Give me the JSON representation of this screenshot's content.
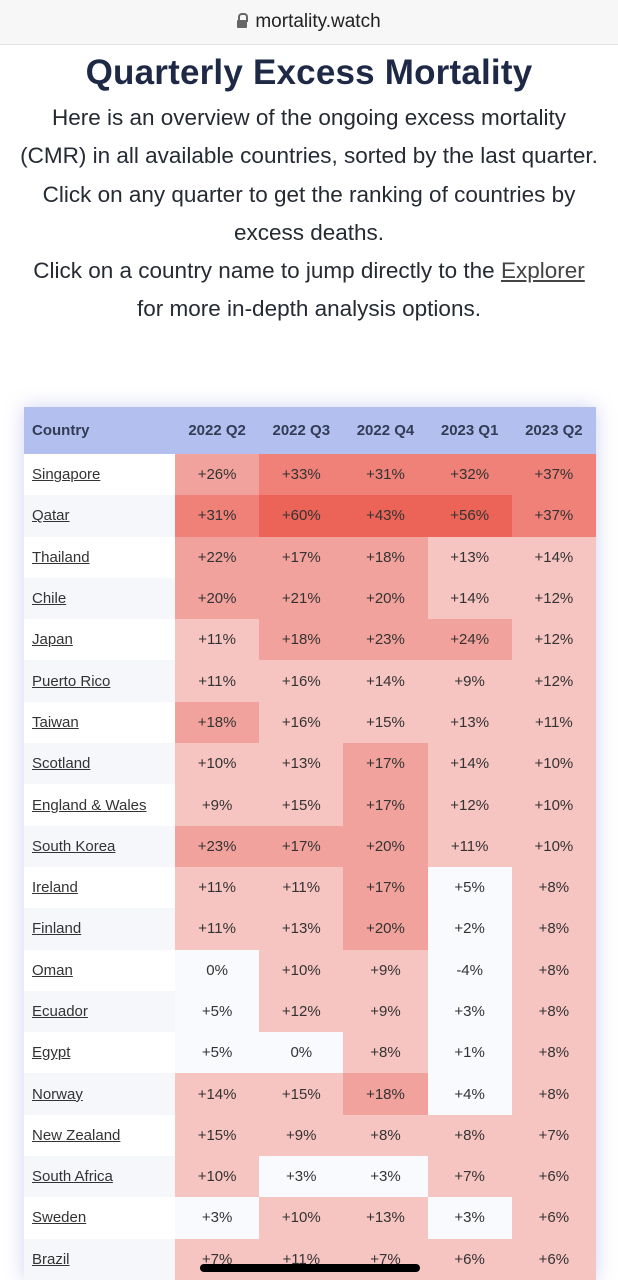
{
  "browser": {
    "url": "mortality.watch",
    "icon": "lock-icon"
  },
  "page": {
    "title": "Quarterly Excess Mortality",
    "intro_1": "Here is an overview of the ongoing excess mortality (CMR) in all available countries, sorted by the last quarter.",
    "intro_2": "Click on any quarter to get the ranking of countries by excess deaths.",
    "intro_3_pre": "Click on a country name to jump directly to the ",
    "intro_3_link": "Explorer",
    "intro_3_post": " for more in-depth analysis options."
  },
  "colors": {
    "header": "#b3c0ef",
    "none": "#f8fafd",
    "low": "#f6c4c1",
    "mid": "#f2a29c",
    "high": "#ef8178",
    "max": "#ec6357"
  },
  "table": {
    "headers": [
      "Country",
      "2022 Q2",
      "2022 Q3",
      "2022 Q4",
      "2023 Q1",
      "2023 Q2"
    ],
    "rows": [
      {
        "country": "Singapore",
        "values": [
          "+26%",
          "+33%",
          "+31%",
          "+32%",
          "+37%"
        ]
      },
      {
        "country": "Qatar",
        "values": [
          "+31%",
          "+60%",
          "+43%",
          "+56%",
          "+37%"
        ]
      },
      {
        "country": "Thailand",
        "values": [
          "+22%",
          "+17%",
          "+18%",
          "+13%",
          "+14%"
        ]
      },
      {
        "country": "Chile",
        "values": [
          "+20%",
          "+21%",
          "+20%",
          "+14%",
          "+12%"
        ]
      },
      {
        "country": "Japan",
        "values": [
          "+11%",
          "+18%",
          "+23%",
          "+24%",
          "+12%"
        ]
      },
      {
        "country": "Puerto Rico",
        "values": [
          "+11%",
          "+16%",
          "+14%",
          "+9%",
          "+12%"
        ]
      },
      {
        "country": "Taiwan",
        "values": [
          "+18%",
          "+16%",
          "+15%",
          "+13%",
          "+11%"
        ]
      },
      {
        "country": "Scotland",
        "values": [
          "+10%",
          "+13%",
          "+17%",
          "+14%",
          "+10%"
        ]
      },
      {
        "country": "England & Wales",
        "values": [
          "+9%",
          "+15%",
          "+17%",
          "+12%",
          "+10%"
        ]
      },
      {
        "country": "South Korea",
        "values": [
          "+23%",
          "+17%",
          "+20%",
          "+11%",
          "+10%"
        ]
      },
      {
        "country": "Ireland",
        "values": [
          "+11%",
          "+11%",
          "+17%",
          "+5%",
          "+8%"
        ]
      },
      {
        "country": "Finland",
        "values": [
          "+11%",
          "+13%",
          "+20%",
          "+2%",
          "+8%"
        ]
      },
      {
        "country": "Oman",
        "values": [
          "0%",
          "+10%",
          "+9%",
          "-4%",
          "+8%"
        ]
      },
      {
        "country": "Ecuador",
        "values": [
          "+5%",
          "+12%",
          "+9%",
          "+3%",
          "+8%"
        ]
      },
      {
        "country": "Egypt",
        "values": [
          "+5%",
          "0%",
          "+8%",
          "+1%",
          "+8%"
        ]
      },
      {
        "country": "Norway",
        "values": [
          "+14%",
          "+15%",
          "+18%",
          "+4%",
          "+8%"
        ]
      },
      {
        "country": "New Zealand",
        "values": [
          "+15%",
          "+9%",
          "+8%",
          "+8%",
          "+7%"
        ]
      },
      {
        "country": "South Africa",
        "values": [
          "+10%",
          "+3%",
          "+3%",
          "+7%",
          "+6%"
        ]
      },
      {
        "country": "Sweden",
        "values": [
          "+3%",
          "+10%",
          "+13%",
          "+3%",
          "+6%"
        ]
      },
      {
        "country": "Brazil",
        "values": [
          "+7%",
          "+11%",
          "+7%",
          "+6%",
          "+6%"
        ]
      }
    ]
  }
}
